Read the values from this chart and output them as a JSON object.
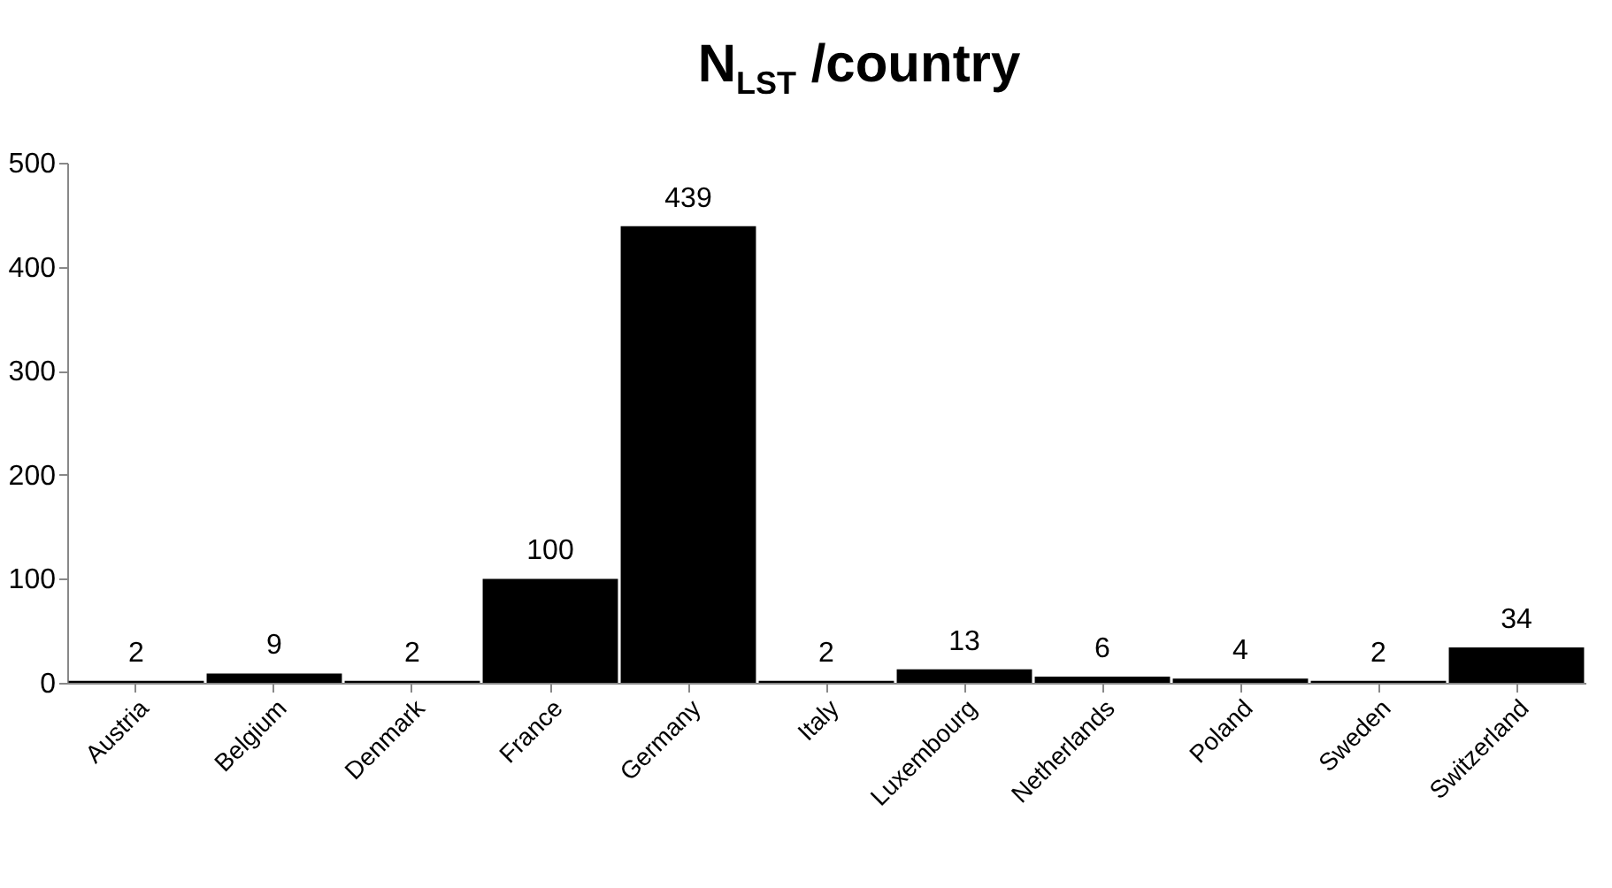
{
  "chart_data": {
    "type": "bar",
    "title": "N$_{LST}$ /country",
    "categories": [
      "Austria",
      "Belgium",
      "Denmark",
      "France",
      "Germany",
      "Italy",
      "Luxembourg",
      "Netherlands",
      "Poland",
      "Sweden",
      "Switzerland"
    ],
    "values": [
      2,
      9,
      2,
      100,
      439,
      2,
      13,
      6,
      4,
      2,
      34
    ],
    "color": "#000000",
    "ylim": [
      0,
      500
    ],
    "yticks": [
      0,
      100,
      200,
      300,
      400,
      500
    ],
    "grid": false,
    "data_labels": true
  }
}
